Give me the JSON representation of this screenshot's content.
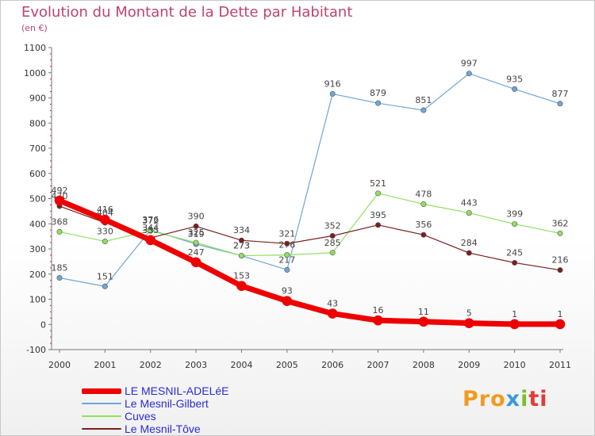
{
  "title": "Evolution du Montant de la Dette par Habitant",
  "unit": "(en €)",
  "logo": [
    "Pro",
    "x",
    "i",
    "ti"
  ],
  "chart_data": {
    "type": "line",
    "title": "Evolution du Montant de la Dette par Habitant",
    "ylabel": "(en €)",
    "xlabel": "",
    "x": [
      "2000",
      "2001",
      "2002",
      "2003",
      "2004",
      "2005",
      "2006",
      "2007",
      "2008",
      "2009",
      "2010",
      "2011"
    ],
    "ylim": [
      -100,
      1100
    ],
    "yticks": [
      -100,
      0,
      100,
      200,
      300,
      400,
      500,
      600,
      700,
      800,
      900,
      1000,
      1100
    ],
    "grid": false,
    "legend": "bottom-left",
    "series": [
      {
        "name": "LE MESNIL-ADELéE",
        "color": "#ee0000",
        "width": 7,
        "values": [
          492,
          416,
          335,
          247,
          153,
          93,
          43,
          16,
          11,
          5,
          1,
          1
        ]
      },
      {
        "name": "Le Mesnil-Gilbert",
        "color": "#6fa6d6",
        "width": 1.2,
        "values": [
          185,
          151,
          376,
          319,
          273,
          217,
          916,
          879,
          851,
          997,
          935,
          877
        ]
      },
      {
        "name": "Cuves",
        "color": "#90e060",
        "width": 1.2,
        "values": [
          368,
          330,
          372,
          325,
          273,
          276,
          285,
          521,
          478,
          443,
          399,
          362
        ]
      },
      {
        "name": "Le Mesnil-Tôve",
        "color": "#7a1f1f",
        "width": 1.2,
        "values": [
          470,
          404,
          344,
          390,
          334,
          321,
          352,
          395,
          356,
          284,
          245,
          216
        ]
      }
    ]
  }
}
